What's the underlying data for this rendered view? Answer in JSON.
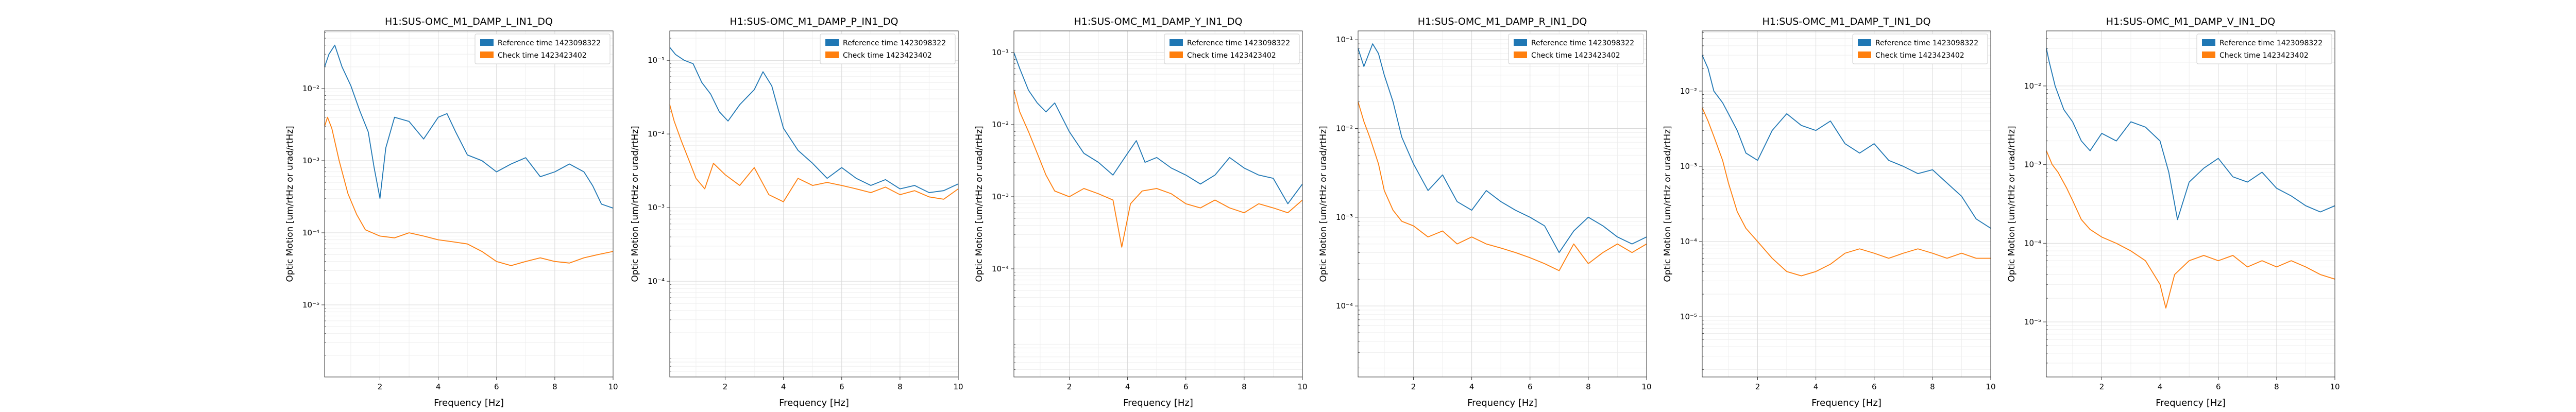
{
  "colors": {
    "reference": "#1f77b4",
    "check": "#ff7f0e",
    "grid": "#d9d9d9",
    "axis": "#333333"
  },
  "chart_data": [
    {
      "type": "line",
      "title": "H1:SUS-OMC_M1_DAMP_L_IN1_DQ",
      "xlabel": "Frequency [Hz]",
      "ylabel": "Optic Motion [um/rtHz or urad/rtHz]",
      "xlim": [
        0.1,
        10
      ],
      "ylim_log10": [
        -6,
        -1.2
      ],
      "log_y": true,
      "grid": true,
      "legend_position": "top-right",
      "xticks": [
        2,
        4,
        6,
        8,
        10
      ],
      "xtick_labels": [
        "2",
        "4",
        "6",
        "8",
        "10"
      ],
      "yticks": [
        -5,
        -4,
        -3,
        -2
      ],
      "ytick_labels": [
        "10⁻⁵",
        "10⁻⁴",
        "10⁻³",
        "10⁻²"
      ],
      "series": [
        {
          "name": "Reference time 1423098322",
          "color": "#1f77b4",
          "x": [
            0.1,
            0.25,
            0.45,
            0.7,
            1.0,
            1.3,
            1.6,
            1.8,
            2.0,
            2.2,
            2.5,
            3.0,
            3.5,
            4.0,
            4.3,
            4.6,
            5.0,
            5.5,
            6.0,
            6.5,
            7.0,
            7.5,
            8.0,
            8.5,
            9.0,
            9.3,
            9.6,
            10.0
          ],
          "y": [
            0.02,
            0.03,
            0.04,
            0.02,
            0.011,
            0.005,
            0.0025,
            0.0008,
            0.0003,
            0.0015,
            0.004,
            0.0035,
            0.002,
            0.004,
            0.0045,
            0.0025,
            0.0012,
            0.001,
            0.0007,
            0.0009,
            0.0011,
            0.0006,
            0.0007,
            0.0009,
            0.0007,
            0.00045,
            0.00025,
            0.00022
          ]
        },
        {
          "name": "Check time 1423423402",
          "color": "#ff7f0e",
          "x": [
            0.1,
            0.2,
            0.35,
            0.6,
            0.9,
            1.2,
            1.5,
            2.0,
            2.5,
            3.0,
            3.5,
            4.0,
            4.5,
            5.0,
            5.5,
            6.0,
            6.5,
            7.0,
            7.5,
            8.0,
            8.5,
            9.0,
            9.5,
            10.0
          ],
          "y": [
            0.003,
            0.004,
            0.0028,
            0.001,
            0.00035,
            0.00018,
            0.00011,
            9e-05,
            8.5e-05,
            0.0001,
            9e-05,
            8e-05,
            7.5e-05,
            7e-05,
            5.5e-05,
            4e-05,
            3.5e-05,
            4e-05,
            4.5e-05,
            4e-05,
            3.8e-05,
            4.5e-05,
            5e-05,
            5.5e-05
          ]
        }
      ]
    },
    {
      "type": "line",
      "title": "H1:SUS-OMC_M1_DAMP_P_IN1_DQ",
      "xlabel": "Frequency [Hz]",
      "ylabel": "Optic Motion [um/rtHz or urad/rtHz]",
      "xlim": [
        0.1,
        10
      ],
      "ylim_log10": [
        -5.3,
        -0.6
      ],
      "log_y": true,
      "grid": true,
      "legend_position": "top-right",
      "xticks": [
        2,
        4,
        6,
        8,
        10
      ],
      "xtick_labels": [
        "2",
        "4",
        "6",
        "8",
        "10"
      ],
      "yticks": [
        -4,
        -3,
        -2,
        -1
      ],
      "ytick_labels": [
        "10⁻⁴",
        "10⁻³",
        "10⁻²",
        "10⁻¹"
      ],
      "series": [
        {
          "name": "Reference time 1423098322",
          "color": "#1f77b4",
          "x": [
            0.1,
            0.3,
            0.6,
            0.9,
            1.2,
            1.5,
            1.8,
            2.1,
            2.5,
            3.0,
            3.3,
            3.6,
            4.0,
            4.5,
            5.0,
            5.5,
            6.0,
            6.5,
            7.0,
            7.5,
            8.0,
            8.5,
            9.0,
            9.5,
            10.0
          ],
          "y": [
            0.15,
            0.12,
            0.1,
            0.09,
            0.05,
            0.035,
            0.02,
            0.015,
            0.025,
            0.04,
            0.07,
            0.045,
            0.012,
            0.006,
            0.004,
            0.0025,
            0.0035,
            0.0025,
            0.002,
            0.0024,
            0.0018,
            0.002,
            0.0016,
            0.0017,
            0.0021
          ]
        },
        {
          "name": "Check time 1423423402",
          "color": "#ff7f0e",
          "x": [
            0.1,
            0.25,
            0.5,
            0.8,
            1.0,
            1.3,
            1.6,
            2.0,
            2.5,
            3.0,
            3.5,
            4.0,
            4.5,
            5.0,
            5.5,
            6.0,
            6.5,
            7.0,
            7.5,
            8.0,
            8.5,
            9.0,
            9.5,
            10.0
          ],
          "y": [
            0.025,
            0.015,
            0.008,
            0.004,
            0.0025,
            0.0018,
            0.004,
            0.0028,
            0.002,
            0.0035,
            0.0015,
            0.0012,
            0.0025,
            0.002,
            0.0022,
            0.002,
            0.0018,
            0.0016,
            0.0019,
            0.0015,
            0.0017,
            0.0014,
            0.0013,
            0.0018
          ]
        }
      ]
    },
    {
      "type": "line",
      "title": "H1:SUS-OMC_M1_DAMP_Y_IN1_DQ",
      "xlabel": "Frequency [Hz]",
      "ylabel": "Optic Motion [um/rtHz or urad/rtHz]",
      "xlim": [
        0.1,
        10
      ],
      "ylim_log10": [
        -5.5,
        -0.7
      ],
      "log_y": true,
      "grid": true,
      "legend_position": "top-right",
      "xticks": [
        2,
        4,
        6,
        8,
        10
      ],
      "xtick_labels": [
        "2",
        "4",
        "6",
        "8",
        "10"
      ],
      "yticks": [
        -4,
        -3,
        -2,
        -1
      ],
      "ytick_labels": [
        "10⁻⁴",
        "10⁻³",
        "10⁻²",
        "10⁻¹"
      ],
      "series": [
        {
          "name": "Reference time 1423098322",
          "color": "#1f77b4",
          "x": [
            0.1,
            0.3,
            0.6,
            0.9,
            1.2,
            1.5,
            2.0,
            2.5,
            3.0,
            3.5,
            4.0,
            4.3,
            4.6,
            5.0,
            5.5,
            6.0,
            6.5,
            7.0,
            7.5,
            8.0,
            8.5,
            9.0,
            9.5,
            10.0
          ],
          "y": [
            0.1,
            0.06,
            0.03,
            0.02,
            0.015,
            0.02,
            0.008,
            0.004,
            0.003,
            0.002,
            0.004,
            0.006,
            0.003,
            0.0035,
            0.0025,
            0.002,
            0.0015,
            0.002,
            0.0035,
            0.0025,
            0.002,
            0.0018,
            0.0008,
            0.0015
          ]
        },
        {
          "name": "Check time 1423423402",
          "color": "#ff7f0e",
          "x": [
            0.1,
            0.3,
            0.6,
            0.9,
            1.2,
            1.5,
            2.0,
            2.5,
            3.0,
            3.5,
            3.8,
            4.1,
            4.5,
            5.0,
            5.5,
            6.0,
            6.5,
            7.0,
            7.5,
            8.0,
            8.5,
            9.0,
            9.5,
            10.0
          ],
          "y": [
            0.03,
            0.015,
            0.008,
            0.004,
            0.002,
            0.0012,
            0.001,
            0.0013,
            0.0011,
            0.0009,
            0.0002,
            0.0008,
            0.0012,
            0.0013,
            0.0011,
            0.0008,
            0.0007,
            0.0009,
            0.0007,
            0.0006,
            0.0008,
            0.0007,
            0.0006,
            0.0009
          ]
        }
      ]
    },
    {
      "type": "line",
      "title": "H1:SUS-OMC_M1_DAMP_R_IN1_DQ",
      "xlabel": "Frequency [Hz]",
      "ylabel": "Optic Motion [um/rtHz or urad/rtHz]",
      "xlim": [
        0.1,
        10
      ],
      "ylim_log10": [
        -4.8,
        -0.9
      ],
      "log_y": true,
      "grid": true,
      "legend_position": "top-right",
      "xticks": [
        2,
        4,
        6,
        8,
        10
      ],
      "xtick_labels": [
        "2",
        "4",
        "6",
        "8",
        "10"
      ],
      "yticks": [
        -4,
        -3,
        -2,
        -1
      ],
      "ytick_labels": [
        "10⁻⁴",
        "10⁻³",
        "10⁻²",
        "10⁻¹"
      ],
      "series": [
        {
          "name": "Reference time 1423098322",
          "color": "#1f77b4",
          "x": [
            0.1,
            0.3,
            0.6,
            0.8,
            1.0,
            1.3,
            1.6,
            2.0,
            2.5,
            3.0,
            3.5,
            4.0,
            4.5,
            5.0,
            5.5,
            6.0,
            6.5,
            7.0,
            7.5,
            8.0,
            8.5,
            9.0,
            9.5,
            10.0
          ],
          "y": [
            0.08,
            0.05,
            0.09,
            0.07,
            0.04,
            0.02,
            0.008,
            0.004,
            0.002,
            0.003,
            0.0015,
            0.0012,
            0.002,
            0.0015,
            0.0012,
            0.001,
            0.0008,
            0.0004,
            0.0007,
            0.001,
            0.0008,
            0.0006,
            0.0005,
            0.0006
          ]
        },
        {
          "name": "Check time 1423423402",
          "color": "#ff7f0e",
          "x": [
            0.1,
            0.3,
            0.5,
            0.8,
            1.0,
            1.3,
            1.6,
            2.0,
            2.5,
            3.0,
            3.5,
            4.0,
            4.5,
            5.0,
            5.5,
            6.0,
            6.5,
            7.0,
            7.5,
            8.0,
            8.5,
            9.0,
            9.5,
            10.0
          ],
          "y": [
            0.02,
            0.012,
            0.008,
            0.004,
            0.002,
            0.0012,
            0.0009,
            0.0008,
            0.0006,
            0.0007,
            0.0005,
            0.0006,
            0.0005,
            0.00045,
            0.0004,
            0.00035,
            0.0003,
            0.00025,
            0.0005,
            0.0003,
            0.0004,
            0.0005,
            0.0004,
            0.0005
          ]
        }
      ]
    },
    {
      "type": "line",
      "title": "H1:SUS-OMC_M1_DAMP_T_IN1_DQ",
      "xlabel": "Frequency [Hz]",
      "ylabel": "Optic Motion [um/rtHz or urad/rtHz]",
      "xlim": [
        0.1,
        10
      ],
      "ylim_log10": [
        -5.8,
        -1.2
      ],
      "log_y": true,
      "grid": true,
      "legend_position": "top-right",
      "xticks": [
        2,
        4,
        6,
        8,
        10
      ],
      "xtick_labels": [
        "2",
        "4",
        "6",
        "8",
        "10"
      ],
      "yticks": [
        -5,
        -4,
        -3,
        -2
      ],
      "ytick_labels": [
        "10⁻⁵",
        "10⁻⁴",
        "10⁻³",
        "10⁻²"
      ],
      "series": [
        {
          "name": "Reference time 1423098322",
          "color": "#1f77b4",
          "x": [
            0.1,
            0.3,
            0.5,
            0.8,
            1.0,
            1.3,
            1.6,
            2.0,
            2.5,
            3.0,
            3.5,
            4.0,
            4.5,
            5.0,
            5.5,
            6.0,
            6.5,
            7.0,
            7.5,
            8.0,
            8.5,
            9.0,
            9.5,
            10.0
          ],
          "y": [
            0.03,
            0.02,
            0.01,
            0.007,
            0.005,
            0.003,
            0.0015,
            0.0012,
            0.003,
            0.005,
            0.0035,
            0.003,
            0.004,
            0.002,
            0.0015,
            0.002,
            0.0012,
            0.001,
            0.0008,
            0.0009,
            0.0006,
            0.0004,
            0.0002,
            0.00015
          ]
        },
        {
          "name": "Check time 1423423402",
          "color": "#ff7f0e",
          "x": [
            0.1,
            0.3,
            0.5,
            0.8,
            1.0,
            1.3,
            1.6,
            2.0,
            2.5,
            3.0,
            3.5,
            4.0,
            4.5,
            5.0,
            5.5,
            6.0,
            6.5,
            7.0,
            7.5,
            8.0,
            8.5,
            9.0,
            9.5,
            10.0
          ],
          "y": [
            0.006,
            0.004,
            0.0025,
            0.0012,
            0.0006,
            0.00025,
            0.00015,
            0.0001,
            6e-05,
            4e-05,
            3.5e-05,
            4e-05,
            5e-05,
            7e-05,
            8e-05,
            7e-05,
            6e-05,
            7e-05,
            8e-05,
            7e-05,
            6e-05,
            7e-05,
            6e-05,
            6e-05
          ]
        }
      ]
    },
    {
      "type": "line",
      "title": "H1:SUS-OMC_M1_DAMP_V_IN1_DQ",
      "xlabel": "Frequency [Hz]",
      "ylabel": "Optic Motion [um/rtHz or urad/rtHz]",
      "xlim": [
        0.1,
        10
      ],
      "ylim_log10": [
        -5.7,
        -1.3
      ],
      "log_y": true,
      "grid": true,
      "legend_position": "top-right",
      "xticks": [
        2,
        4,
        6,
        8,
        10
      ],
      "xtick_labels": [
        "2",
        "4",
        "6",
        "8",
        "10"
      ],
      "yticks": [
        -5,
        -4,
        -3,
        -2
      ],
      "ytick_labels": [
        "10⁻⁵",
        "10⁻⁴",
        "10⁻³",
        "10⁻²"
      ],
      "series": [
        {
          "name": "Reference time 1423098322",
          "color": "#1f77b4",
          "x": [
            0.1,
            0.2,
            0.4,
            0.7,
            1.0,
            1.3,
            1.6,
            2.0,
            2.5,
            3.0,
            3.5,
            4.0,
            4.3,
            4.6,
            5.0,
            5.5,
            6.0,
            6.5,
            7.0,
            7.5,
            8.0,
            8.5,
            9.0,
            9.5,
            10.0
          ],
          "y": [
            0.03,
            0.02,
            0.01,
            0.005,
            0.0035,
            0.002,
            0.0015,
            0.0025,
            0.002,
            0.0035,
            0.003,
            0.002,
            0.0008,
            0.0002,
            0.0006,
            0.0009,
            0.0012,
            0.0007,
            0.0006,
            0.0008,
            0.0005,
            0.0004,
            0.0003,
            0.00025,
            0.0003
          ]
        },
        {
          "name": "Check time 1423423402",
          "color": "#ff7f0e",
          "x": [
            0.1,
            0.3,
            0.5,
            0.8,
            1.0,
            1.3,
            1.6,
            2.0,
            2.5,
            3.0,
            3.5,
            4.0,
            4.2,
            4.5,
            5.0,
            5.5,
            6.0,
            6.5,
            7.0,
            7.5,
            8.0,
            8.5,
            9.0,
            9.5,
            10.0
          ],
          "y": [
            0.0015,
            0.001,
            0.0008,
            0.0005,
            0.00035,
            0.0002,
            0.00015,
            0.00012,
            0.0001,
            8e-05,
            6e-05,
            3e-05,
            1.5e-05,
            4e-05,
            6e-05,
            7e-05,
            6e-05,
            7e-05,
            5e-05,
            6e-05,
            5e-05,
            6e-05,
            5e-05,
            4e-05,
            3.5e-05
          ]
        }
      ]
    }
  ]
}
